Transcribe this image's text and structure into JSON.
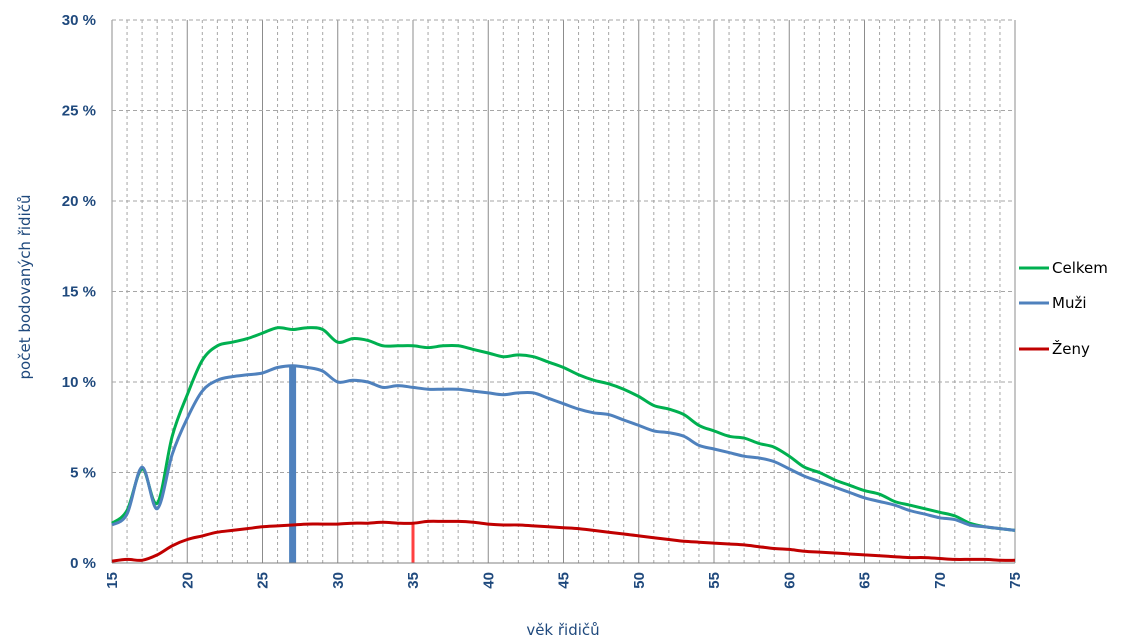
{
  "chart_data": {
    "type": "line",
    "title": "",
    "xlabel": "věk řidičů",
    "ylabel": "počet bodovaných řidičů",
    "xlim": [
      15,
      75
    ],
    "ylim": [
      0,
      30
    ],
    "x_ticks": [
      15,
      20,
      25,
      30,
      35,
      40,
      45,
      50,
      55,
      60,
      65,
      70,
      75
    ],
    "y_ticks": [
      0,
      5,
      10,
      15,
      20,
      25,
      30
    ],
    "y_tick_labels": [
      "0 %",
      "5 %",
      "10 %",
      "15 %",
      "20 %",
      "25 %",
      "30 %"
    ],
    "grid": "vertical major solid, vertical minor dashed, horizontal dashed",
    "legend_position": "right",
    "x": [
      15,
      16,
      17,
      18,
      19,
      20,
      21,
      22,
      23,
      24,
      25,
      26,
      27,
      28,
      29,
      30,
      31,
      32,
      33,
      34,
      35,
      36,
      37,
      38,
      39,
      40,
      41,
      42,
      43,
      44,
      45,
      46,
      47,
      48,
      49,
      50,
      51,
      52,
      53,
      54,
      55,
      56,
      57,
      58,
      59,
      60,
      61,
      62,
      63,
      64,
      65,
      66,
      67,
      68,
      69,
      70,
      71,
      72,
      73,
      74,
      75
    ],
    "series": [
      {
        "name": "Celkem",
        "color": "#00b050",
        "values": [
          2.2,
          2.9,
          5.2,
          3.3,
          7.0,
          9.3,
          11.2,
          12.0,
          12.2,
          12.4,
          12.7,
          13.0,
          12.9,
          13.0,
          12.9,
          12.2,
          12.4,
          12.3,
          12.0,
          12.0,
          12.0,
          11.9,
          12.0,
          12.0,
          11.8,
          11.6,
          11.4,
          11.5,
          11.4,
          11.1,
          10.8,
          10.4,
          10.1,
          9.9,
          9.6,
          9.2,
          8.7,
          8.5,
          8.2,
          7.6,
          7.3,
          7.0,
          6.9,
          6.6,
          6.4,
          5.9,
          5.3,
          5.0,
          4.6,
          4.3,
          4.0,
          3.8,
          3.4,
          3.2,
          3.0,
          2.8,
          2.6,
          2.2,
          2.0,
          1.9,
          1.8
        ]
      },
      {
        "name": "Muži",
        "color": "#4f81bd",
        "values": [
          2.1,
          2.7,
          5.3,
          3.0,
          6.0,
          8.0,
          9.5,
          10.1,
          10.3,
          10.4,
          10.5,
          10.8,
          10.9,
          10.8,
          10.6,
          10.0,
          10.1,
          10.0,
          9.7,
          9.8,
          9.7,
          9.6,
          9.6,
          9.6,
          9.5,
          9.4,
          9.3,
          9.4,
          9.4,
          9.1,
          8.8,
          8.5,
          8.3,
          8.2,
          7.9,
          7.6,
          7.3,
          7.2,
          7.0,
          6.5,
          6.3,
          6.1,
          5.9,
          5.8,
          5.6,
          5.2,
          4.8,
          4.5,
          4.2,
          3.9,
          3.6,
          3.4,
          3.2,
          2.9,
          2.7,
          2.5,
          2.4,
          2.1,
          2.0,
          1.9,
          1.8
        ]
      },
      {
        "name": "Ženy",
        "color": "#c00000",
        "values": [
          0.1,
          0.2,
          0.15,
          0.45,
          0.95,
          1.3,
          1.5,
          1.7,
          1.8,
          1.9,
          2.0,
          2.05,
          2.1,
          2.15,
          2.15,
          2.15,
          2.2,
          2.2,
          2.25,
          2.2,
          2.2,
          2.3,
          2.3,
          2.3,
          2.25,
          2.15,
          2.1,
          2.1,
          2.05,
          2.0,
          1.95,
          1.9,
          1.8,
          1.7,
          1.6,
          1.5,
          1.4,
          1.3,
          1.2,
          1.15,
          1.1,
          1.05,
          1.0,
          0.9,
          0.8,
          0.75,
          0.65,
          0.6,
          0.55,
          0.5,
          0.45,
          0.4,
          0.35,
          0.3,
          0.3,
          0.25,
          0.2,
          0.2,
          0.2,
          0.15,
          0.15
        ]
      }
    ],
    "markers": [
      {
        "series": "Muži",
        "x": 27,
        "value": 10.9,
        "color": "#4f81bd"
      },
      {
        "series": "Ženy",
        "x": 35,
        "value": 2.2,
        "color": "#ff4040"
      }
    ]
  }
}
